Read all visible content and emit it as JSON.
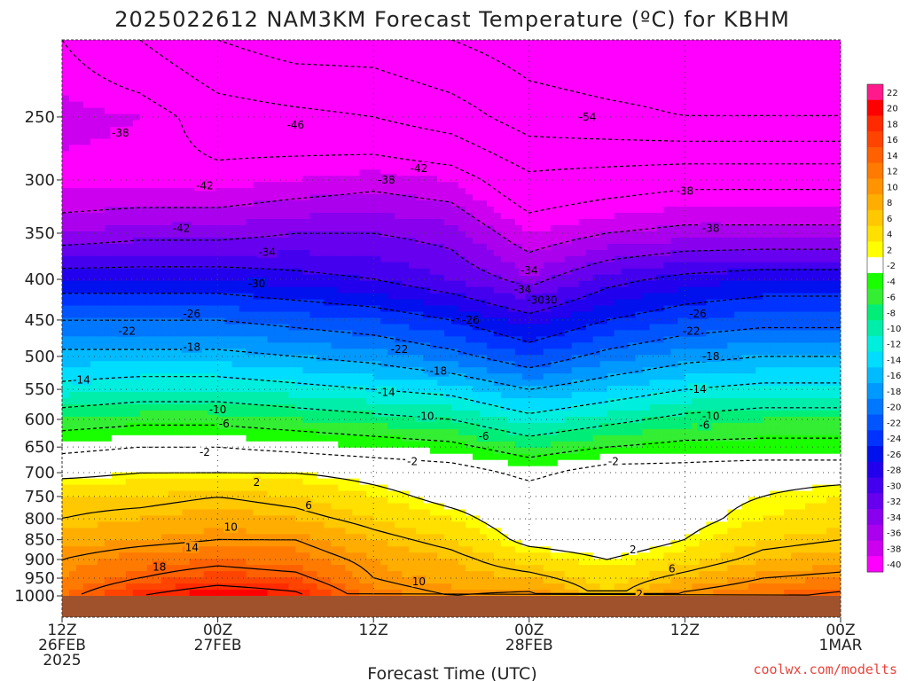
{
  "chart_data": {
    "type": "heatmap",
    "title": "2025022612 NAM3KM Forecast Temperature (ºC) for KBHM",
    "xlabel": "Forecast Time (UTC)",
    "ylabel": "",
    "y_scale": "log-pressure",
    "ylim": [
      1000,
      200
    ],
    "yticks": [
      250,
      300,
      350,
      400,
      450,
      500,
      550,
      600,
      650,
      700,
      750,
      800,
      850,
      900,
      950,
      1000
    ],
    "xticks": [
      {
        "line1": "12Z",
        "line2": "26FEB",
        "line3": "2025"
      },
      {
        "line1": "00Z",
        "line2": "27FEB",
        "line3": ""
      },
      {
        "line1": "12Z",
        "line2": "",
        "line3": ""
      },
      {
        "line1": "00Z",
        "line2": "28FEB",
        "line3": ""
      },
      {
        "line1": "12Z",
        "line2": "",
        "line3": ""
      },
      {
        "line1": "00Z",
        "line2": "1MAR",
        "line3": ""
      }
    ],
    "x_hours": [
      0,
      12,
      24,
      36,
      48,
      60
    ],
    "colorbar": {
      "labels": [
        "22",
        "20",
        "18",
        "16",
        "14",
        "12",
        "10",
        "8",
        "6",
        "4",
        "2",
        "-2",
        "-4",
        "-6",
        "-8",
        "-10",
        "-12",
        "-14",
        "-16",
        "-18",
        "-20",
        "-22",
        "-24",
        "-26",
        "-28",
        "-30",
        "-32",
        "-34",
        "-36",
        "-38",
        "-40"
      ],
      "colors": [
        "#ff1a8c",
        "#ff0000",
        "#ff2a00",
        "#ff4400",
        "#ff6000",
        "#ff7a00",
        "#ff9400",
        "#ffae00",
        "#ffc800",
        "#ffe000",
        "#ffff00",
        "#ffffff",
        "#1aff00",
        "#33ee33",
        "#00ee77",
        "#00eeaa",
        "#00eedd",
        "#00ddff",
        "#00bbff",
        "#0099ff",
        "#0077ff",
        "#0055ff",
        "#0033ff",
        "#0011ee",
        "#2200ee",
        "#4400ee",
        "#6600ee",
        "#8800ee",
        "#aa00ee",
        "#cc00ee",
        "#ff00ff"
      ]
    },
    "profiles": {
      "pressure_levels": [
        1000,
        950,
        900,
        850,
        800,
        750,
        700,
        650,
        600,
        550,
        500,
        450,
        400,
        350,
        300,
        250,
        200
      ],
      "hours": [
        0,
        6,
        12,
        18,
        24,
        30,
        36,
        42,
        48,
        54,
        60
      ],
      "temperature_c": [
        [
          13,
          18,
          21,
          19,
          12,
          10,
          11,
          5,
          11,
          13,
          15
        ],
        [
          11,
          14,
          16,
          15,
          10,
          8,
          7,
          4,
          7,
          10,
          11
        ],
        [
          10,
          12,
          13,
          12,
          9,
          7,
          4,
          2,
          4,
          7,
          8
        ],
        [
          8,
          9,
          10,
          10,
          7,
          5,
          1,
          0,
          2,
          5,
          6
        ],
        [
          6,
          7,
          8,
          7,
          5,
          3,
          0,
          0,
          1,
          3,
          4
        ],
        [
          5,
          5,
          6,
          5,
          3,
          1,
          0,
          0,
          1,
          2,
          3
        ],
        [
          1,
          2,
          2,
          2,
          1,
          0,
          -3,
          0,
          0,
          1,
          1
        ],
        [
          -3,
          -2,
          -2,
          -3,
          -4,
          -5,
          -8,
          -6,
          -5,
          -5,
          -5
        ],
        [
          -8,
          -7,
          -7,
          -8,
          -9,
          -10,
          -13,
          -11,
          -9,
          -8,
          -8
        ],
        [
          -13,
          -12,
          -12,
          -13,
          -14,
          -15,
          -18,
          -16,
          -14,
          -13,
          -13
        ],
        [
          -17,
          -17,
          -17,
          -18,
          -19,
          -21,
          -24,
          -21,
          -19,
          -18,
          -18
        ],
        [
          -22,
          -22,
          -22,
          -23,
          -24,
          -26,
          -29,
          -26,
          -24,
          -23,
          -23
        ],
        [
          -28,
          -28,
          -28,
          -29,
          -30,
          -32,
          -35,
          -31,
          -29,
          -28,
          -28
        ],
        [
          -36,
          -35,
          -35,
          -34,
          -34,
          -35,
          -40,
          -38,
          -37,
          -37,
          -37
        ],
        [
          -41,
          -41,
          -41,
          -40,
          -39,
          -40,
          -45,
          -44,
          -43,
          -43,
          -43
        ],
        [
          -39,
          -40,
          -44,
          -45,
          -46,
          -48,
          -52,
          -53,
          -54,
          -54,
          -54
        ],
        [
          -42,
          -46,
          -50,
          -52,
          -52,
          -54,
          -56,
          -57,
          -57,
          -57,
          -57
        ]
      ]
    },
    "contour_labels": [
      "-38",
      "-46",
      "-54",
      "-42",
      "-42",
      "-38",
      "-42",
      "-38",
      "-38",
      "-34",
      "-34",
      "-30",
      "-34",
      "-30",
      "-26",
      "-26",
      "-30",
      "-26",
      "-22",
      "-22",
      "-18",
      "-26",
      "-22",
      "-18",
      "-18",
      "-14",
      "-14",
      "-14",
      "-10",
      "-10",
      "-10",
      "-6",
      "-6",
      "-6",
      "-2",
      "-2",
      "-2",
      "2",
      "6",
      "10",
      "14",
      "18",
      "10",
      "2",
      "6",
      "2"
    ],
    "grid": true,
    "legend": "colorbar-right"
  },
  "credit": "coolwx.com/modelts"
}
